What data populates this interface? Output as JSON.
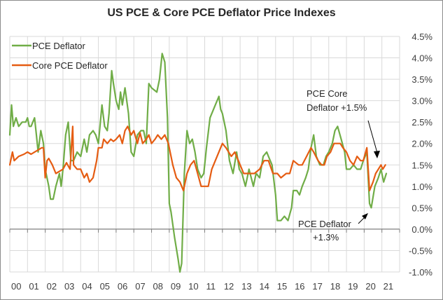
{
  "chart_data": {
    "type": "line",
    "title": "US PCE & Core PCE Deflator Price Indexes",
    "xlabel": "",
    "ylabel": "",
    "x_tick_labels": [
      "00",
      "01",
      "02",
      "03",
      "04",
      "05",
      "06",
      "07",
      "08",
      "09",
      "10",
      "11",
      "12",
      "13",
      "14",
      "15",
      "16",
      "17",
      "18",
      "19",
      "20",
      "21"
    ],
    "y_tick_labels": [
      "4.5%",
      "4.0%",
      "3.5%",
      "3.0%",
      "2.5%",
      "2.0%",
      "1.5%",
      "1.0%",
      "0.5%",
      "0.0%",
      "-0.5%",
      "-1.0%"
    ],
    "y_ticks": [
      4.5,
      4.0,
      3.5,
      3.0,
      2.5,
      2.0,
      1.5,
      1.0,
      0.5,
      0.0,
      -0.5,
      -1.0
    ],
    "ylim": [
      -1.0,
      4.5
    ],
    "xlim": [
      2000,
      2022
    ],
    "y_axis_side": "right",
    "grid": true,
    "legend_position": "top-left",
    "series": [
      {
        "name": "PCE Deflator",
        "color": "#70AD47",
        "x": [
          2000.0,
          2000.1,
          2000.2,
          2000.35,
          2000.5,
          2000.7,
          2000.9,
          2001.0,
          2001.1,
          2001.2,
          2001.4,
          2001.5,
          2001.6,
          2001.75,
          2001.9,
          2002.0,
          2002.2,
          2002.3,
          2002.45,
          2002.6,
          2002.8,
          2002.9,
          2003.0,
          2003.15,
          2003.3,
          2003.45,
          2003.6,
          2003.8,
          2004.0,
          2004.2,
          2004.35,
          2004.5,
          2004.7,
          2004.85,
          2005.0,
          2005.2,
          2005.35,
          2005.5,
          2005.6,
          2005.75,
          2005.85,
          2006.0,
          2006.15,
          2006.25,
          2006.35,
          2006.5,
          2006.7,
          2006.85,
          2007.0,
          2007.2,
          2007.4,
          2007.55,
          2007.7,
          2007.85,
          2008.0,
          2008.3,
          2008.45,
          2008.6,
          2008.75,
          2008.9,
          2009.0,
          2009.1,
          2009.3,
          2009.5,
          2009.6,
          2009.7,
          2009.85,
          2010.0,
          2010.15,
          2010.3,
          2010.45,
          2010.6,
          2010.8,
          2010.95,
          2011.1,
          2011.3,
          2011.6,
          2011.8,
          2011.9,
          2012.0,
          2012.2,
          2012.4,
          2012.6,
          2012.8,
          2012.95,
          2013.1,
          2013.3,
          2013.5,
          2013.75,
          2013.9,
          2014.1,
          2014.3,
          2014.5,
          2014.6,
          2014.8,
          2015.0,
          2015.1,
          2015.3,
          2015.5,
          2015.7,
          2015.9,
          2016.0,
          2016.2,
          2016.35,
          2016.5,
          2016.7,
          2016.85,
          2017.0,
          2017.15,
          2017.3,
          2017.5,
          2017.7,
          2017.85,
          2018.0,
          2018.2,
          2018.35,
          2018.5,
          2018.7,
          2018.9,
          2019.0,
          2019.2,
          2019.4,
          2019.6,
          2019.8,
          2019.95,
          2020.15,
          2020.3,
          2020.4,
          2020.6,
          2020.8,
          2020.95,
          2021.1,
          2021.25
        ],
        "values": [
          2.2,
          2.9,
          2.4,
          2.6,
          2.4,
          2.5,
          2.5,
          2.6,
          2.4,
          2.4,
          2.6,
          2.2,
          1.8,
          2.3,
          2.0,
          1.4,
          1.0,
          0.7,
          0.7,
          1.0,
          1.3,
          1.0,
          1.4,
          2.2,
          2.5,
          1.6,
          1.6,
          1.8,
          1.7,
          2.1,
          1.8,
          2.2,
          2.3,
          2.2,
          2.0,
          2.9,
          2.4,
          2.3,
          2.7,
          3.7,
          3.4,
          3.0,
          2.8,
          3.2,
          2.9,
          3.3,
          2.7,
          1.8,
          1.7,
          2.2,
          2.3,
          2.3,
          2.0,
          3.4,
          3.3,
          3.2,
          3.5,
          4.1,
          3.9,
          2.6,
          0.6,
          0.4,
          -0.2,
          -0.7,
          -1.0,
          -0.8,
          1.3,
          2.3,
          2.0,
          2.1,
          1.8,
          1.4,
          1.2,
          1.3,
          1.9,
          2.6,
          2.9,
          3.1,
          2.8,
          2.7,
          2.3,
          1.6,
          1.3,
          1.8,
          1.4,
          1.3,
          1.0,
          1.4,
          1.0,
          1.3,
          1.2,
          1.7,
          1.8,
          1.7,
          1.5,
          0.8,
          0.2,
          0.2,
          0.3,
          0.2,
          0.5,
          0.9,
          0.9,
          0.8,
          1.0,
          1.2,
          1.4,
          1.9,
          2.2,
          1.7,
          1.5,
          1.5,
          1.7,
          1.8,
          2.0,
          2.3,
          2.4,
          2.1,
          1.8,
          1.4,
          1.4,
          1.5,
          1.4,
          1.4,
          1.6,
          1.8,
          0.6,
          0.5,
          1.0,
          1.2,
          1.4,
          1.1,
          1.3
        ]
      },
      {
        "name": "Core PCE Deflator",
        "color": "#E55C12",
        "x": [
          2000.0,
          2000.15,
          2000.25,
          2000.5,
          2000.8,
          2001.0,
          2001.2,
          2001.4,
          2001.6,
          2001.8,
          2001.9,
          2002.0,
          2002.1,
          2002.2,
          2002.4,
          2002.6,
          2002.8,
          2003.0,
          2003.2,
          2003.4,
          2003.55,
          2003.6,
          2003.8,
          2004.0,
          2004.2,
          2004.35,
          2004.5,
          2004.7,
          2004.9,
          2005.0,
          2005.2,
          2005.3,
          2005.5,
          2005.7,
          2005.85,
          2006.0,
          2006.2,
          2006.35,
          2006.5,
          2006.65,
          2006.85,
          2007.0,
          2007.2,
          2007.35,
          2007.5,
          2007.7,
          2007.85,
          2008.0,
          2008.2,
          2008.35,
          2008.55,
          2008.75,
          2008.95,
          2009.2,
          2009.4,
          2009.6,
          2009.8,
          2010.0,
          2010.2,
          2010.4,
          2010.6,
          2010.8,
          2011.0,
          2011.2,
          2011.4,
          2011.7,
          2012.0,
          2012.2,
          2012.5,
          2012.7,
          2012.9,
          2013.2,
          2013.5,
          2013.8,
          2014.1,
          2014.35,
          2014.6,
          2014.85,
          2015.1,
          2015.3,
          2015.6,
          2015.8,
          2016.0,
          2016.3,
          2016.5,
          2016.75,
          2017.0,
          2017.15,
          2017.4,
          2017.6,
          2017.75,
          2017.9,
          2018.1,
          2018.3,
          2018.5,
          2018.65,
          2018.8,
          2019.0,
          2019.2,
          2019.4,
          2019.6,
          2019.8,
          2019.95,
          2020.15,
          2020.3,
          2020.5,
          2020.65,
          2020.8,
          2020.95,
          2021.05,
          2021.2
        ],
        "values": [
          1.5,
          1.8,
          1.6,
          1.7,
          1.75,
          1.8,
          1.75,
          1.8,
          1.85,
          1.9,
          1.9,
          1.2,
          1.6,
          1.65,
          1.5,
          1.3,
          1.35,
          1.4,
          1.55,
          1.4,
          2.4,
          1.5,
          1.4,
          1.4,
          1.2,
          1.3,
          1.1,
          1.2,
          1.6,
          1.9,
          1.9,
          2.1,
          2.0,
          2.1,
          2.05,
          2.1,
          2.2,
          2.0,
          2.3,
          2.4,
          2.2,
          2.3,
          2.0,
          2.25,
          2.0,
          2.1,
          2.2,
          2.0,
          2.1,
          2.2,
          2.1,
          2.2,
          2.0,
          1.5,
          1.2,
          1.1,
          0.9,
          1.3,
          1.5,
          1.6,
          1.3,
          1.0,
          1.0,
          1.0,
          1.4,
          1.7,
          2.0,
          1.9,
          1.7,
          1.8,
          1.6,
          1.3,
          1.3,
          1.3,
          1.4,
          1.6,
          1.6,
          1.3,
          1.3,
          1.2,
          1.3,
          1.3,
          1.6,
          1.5,
          1.5,
          1.7,
          1.9,
          1.8,
          1.6,
          1.5,
          1.5,
          1.7,
          1.8,
          2.0,
          2.0,
          2.0,
          1.9,
          1.8,
          1.6,
          1.5,
          1.7,
          1.6,
          1.6,
          1.9,
          0.9,
          1.1,
          1.3,
          1.4,
          1.5,
          1.4,
          1.5
        ]
      }
    ],
    "annotations": [
      {
        "text_lines": [
          "PCE Core",
          "Deflator +1.5%"
        ],
        "points_to": "Core PCE Deflator latest value",
        "value": 1.5
      },
      {
        "text_lines": [
          "PCE Deflator",
          "+1.3%"
        ],
        "points_to": "PCE Deflator latest value",
        "value": 1.3
      }
    ]
  }
}
